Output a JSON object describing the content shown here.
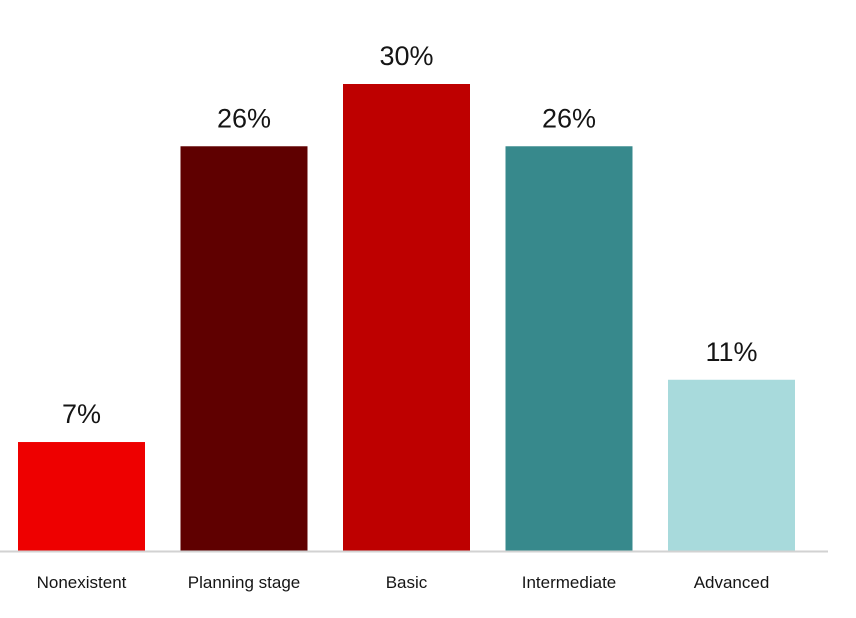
{
  "chart_data": {
    "type": "bar",
    "title": "",
    "xlabel": "",
    "ylabel": "",
    "ylim": [
      0,
      30
    ],
    "grid": false,
    "legend": "none",
    "categories": [
      "Nonexistent",
      "Planning stage",
      "Basic",
      "Intermediate",
      "Advanced"
    ],
    "values": [
      7,
      26,
      30,
      26,
      11
    ],
    "value_labels": [
      "7%",
      "26%",
      "30%",
      "26%",
      "11%"
    ],
    "colors": [
      "#ee0000",
      "#5f0000",
      "#be0000",
      "#37898c",
      "#a8dadc"
    ],
    "baseline_color": "#d2d2d2"
  }
}
